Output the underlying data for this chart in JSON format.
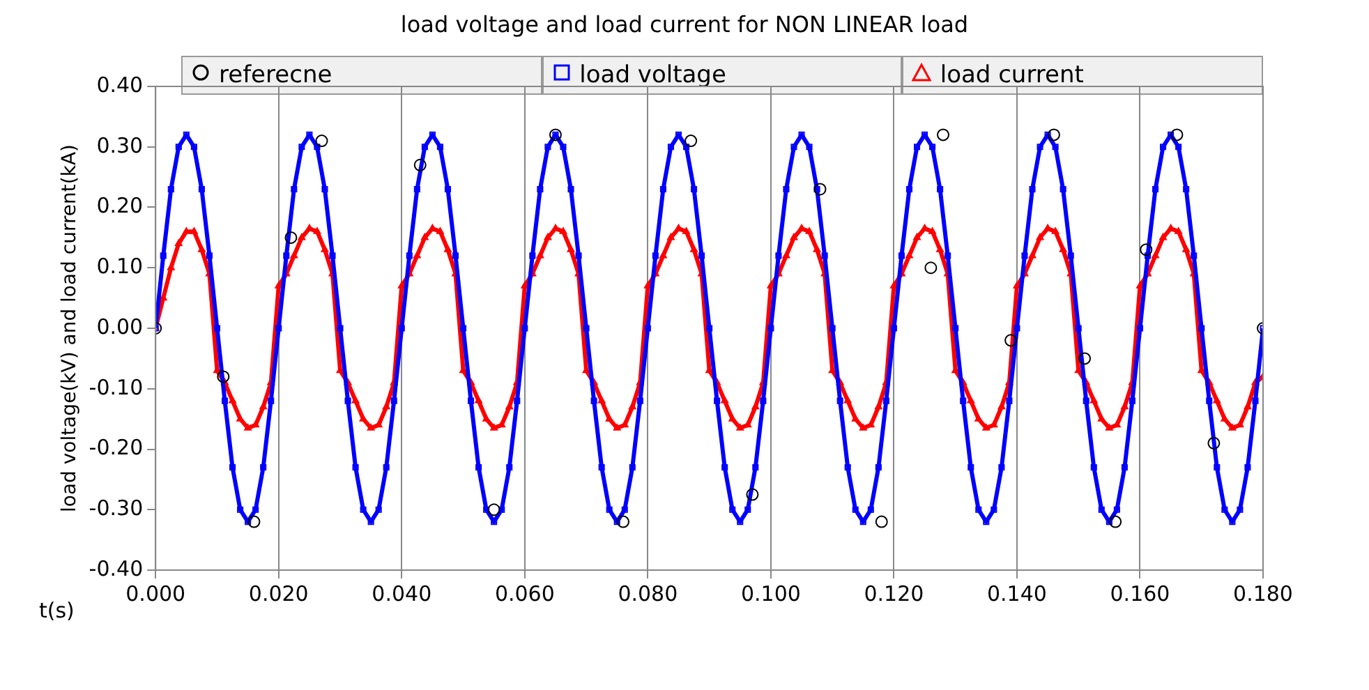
{
  "chart_data": {
    "type": "line",
    "title": "load voltage and load current for NON LINEAR load",
    "xlabel": "t(s)",
    "ylabel": "load voltage(kV) and load current(kA)",
    "x": [
      0,
      0.00125,
      0.0025,
      0.00375,
      0.005,
      0.00625,
      0.0075,
      0.00875,
      0.01,
      0.01125,
      0.0125,
      0.01375,
      0.015,
      0.01625,
      0.0175,
      0.01875,
      0.02,
      0.02125,
      0.0225,
      0.02375,
      0.025,
      0.02625,
      0.0275,
      0.02875,
      0.03,
      0.03125,
      0.0325,
      0.03375,
      0.035,
      0.03625,
      0.0375,
      0.03875,
      0.04,
      0.04125,
      0.0425,
      0.04375,
      0.045,
      0.04625,
      0.0475,
      0.04875,
      0.05,
      0.05125,
      0.0525,
      0.05375,
      0.055,
      0.05625,
      0.0575,
      0.05875,
      0.06,
      0.06125,
      0.0625,
      0.06375,
      0.065,
      0.06625,
      0.0675,
      0.06875,
      0.07,
      0.07125,
      0.0725,
      0.07375,
      0.075,
      0.07625,
      0.0775,
      0.07875,
      0.08,
      0.08125,
      0.0825,
      0.08375,
      0.085,
      0.08625,
      0.0875,
      0.08875,
      0.09,
      0.09125,
      0.0925,
      0.09375,
      0.095,
      0.09625,
      0.0975,
      0.09875,
      0.1,
      0.10125,
      0.1025,
      0.10375,
      0.105,
      0.10625,
      0.1075,
      0.10875,
      0.11,
      0.11125,
      0.1125,
      0.11375,
      0.115,
      0.11625,
      0.1175,
      0.11875,
      0.12,
      0.12125,
      0.1225,
      0.12375,
      0.125,
      0.12625,
      0.1275,
      0.12875,
      0.13,
      0.13125,
      0.1325,
      0.13375,
      0.135,
      0.13625,
      0.1375,
      0.13875,
      0.14,
      0.14125,
      0.1425,
      0.14375,
      0.145,
      0.14625,
      0.1475,
      0.14875,
      0.15,
      0.15125,
      0.1525,
      0.15375,
      0.155,
      0.15625,
      0.1575,
      0.15875,
      0.16,
      0.16125,
      0.1625,
      0.16375,
      0.165,
      0.16625,
      0.1675,
      0.16875,
      0.17,
      0.17125,
      0.1725,
      0.17375,
      0.175,
      0.17625,
      0.1775,
      0.17875,
      0.18
    ],
    "series": [
      {
        "name": "load voltage",
        "color": "#0000ff",
        "marker": "square",
        "values": [
          0,
          0.12,
          0.23,
          0.3,
          0.32,
          0.3,
          0.23,
          0.12,
          0,
          -0.12,
          -0.23,
          -0.3,
          -0.32,
          -0.3,
          -0.23,
          -0.12,
          0,
          0.12,
          0.23,
          0.3,
          0.32,
          0.3,
          0.23,
          0.12,
          0,
          -0.12,
          -0.23,
          -0.3,
          -0.32,
          -0.3,
          -0.23,
          -0.12,
          0,
          0.12,
          0.23,
          0.3,
          0.32,
          0.3,
          0.23,
          0.12,
          0,
          -0.12,
          -0.23,
          -0.3,
          -0.32,
          -0.3,
          -0.23,
          -0.12,
          0,
          0.12,
          0.23,
          0.3,
          0.32,
          0.3,
          0.23,
          0.12,
          0,
          -0.12,
          -0.23,
          -0.3,
          -0.32,
          -0.3,
          -0.23,
          -0.12,
          0,
          0.12,
          0.23,
          0.3,
          0.32,
          0.3,
          0.23,
          0.12,
          0,
          -0.12,
          -0.23,
          -0.3,
          -0.32,
          -0.3,
          -0.23,
          -0.12,
          0,
          0.12,
          0.23,
          0.3,
          0.32,
          0.3,
          0.23,
          0.12,
          0,
          -0.12,
          -0.23,
          -0.3,
          -0.32,
          -0.3,
          -0.23,
          -0.12,
          0,
          0.12,
          0.23,
          0.3,
          0.32,
          0.3,
          0.23,
          0.12,
          0,
          -0.12,
          -0.23,
          -0.3,
          -0.32,
          -0.3,
          -0.23,
          -0.12,
          0,
          0.12,
          0.23,
          0.3,
          0.32,
          0.3,
          0.23,
          0.12,
          0,
          -0.12,
          -0.23,
          -0.3,
          -0.32,
          -0.3,
          -0.23,
          -0.12,
          0,
          0.12,
          0.23,
          0.3,
          0.32,
          0.3,
          0.23,
          0.12,
          0,
          -0.12,
          -0.23,
          -0.3,
          -0.32,
          -0.3,
          -0.23,
          -0.12,
          0
        ]
      },
      {
        "name": "referecne",
        "type": "scatter",
        "color": "#000000",
        "marker": "circle",
        "x": [
          0,
          0.011,
          0.016,
          0.022,
          0.027,
          0.043,
          0.055,
          0.065,
          0.076,
          0.087,
          0.097,
          0.108,
          0.118,
          0.126,
          0.128,
          0.139,
          0.146,
          0.151,
          0.156,
          0.161,
          0.166,
          0.172,
          0.18
        ],
        "values": [
          0,
          -0.08,
          -0.32,
          0.15,
          0.31,
          0.27,
          -0.3,
          0.32,
          -0.32,
          0.31,
          -0.275,
          0.23,
          -0.32,
          0.1,
          0.32,
          -0.02,
          0.32,
          -0.05,
          -0.32,
          0.13,
          0.32,
          -0.19,
          0
        ]
      },
      {
        "name": "load current",
        "color": "#ff0000",
        "marker": "triangle",
        "values": [
          0,
          0.05,
          0.1,
          0.14,
          0.16,
          0.16,
          0.13,
          0.09,
          -0.07,
          -0.09,
          -0.12,
          -0.15,
          -0.165,
          -0.16,
          -0.13,
          -0.09,
          0.07,
          0.09,
          0.12,
          0.15,
          0.165,
          0.16,
          0.13,
          0.09,
          -0.07,
          -0.09,
          -0.12,
          -0.15,
          -0.165,
          -0.16,
          -0.13,
          -0.09,
          0.07,
          0.09,
          0.12,
          0.15,
          0.165,
          0.16,
          0.13,
          0.09,
          -0.07,
          -0.09,
          -0.12,
          -0.15,
          -0.165,
          -0.16,
          -0.13,
          -0.09,
          0.07,
          0.09,
          0.12,
          0.15,
          0.165,
          0.16,
          0.13,
          0.09,
          -0.07,
          -0.09,
          -0.12,
          -0.15,
          -0.165,
          -0.16,
          -0.13,
          -0.09,
          0.07,
          0.09,
          0.12,
          0.15,
          0.165,
          0.16,
          0.13,
          0.09,
          -0.07,
          -0.09,
          -0.12,
          -0.15,
          -0.165,
          -0.16,
          -0.13,
          -0.09,
          0.07,
          0.09,
          0.12,
          0.15,
          0.165,
          0.16,
          0.13,
          0.09,
          -0.07,
          -0.09,
          -0.12,
          -0.15,
          -0.165,
          -0.16,
          -0.13,
          -0.09,
          0.07,
          0.09,
          0.12,
          0.15,
          0.165,
          0.16,
          0.13,
          0.09,
          -0.07,
          -0.09,
          -0.12,
          -0.15,
          -0.165,
          -0.16,
          -0.13,
          -0.09,
          0.07,
          0.09,
          0.12,
          0.15,
          0.165,
          0.16,
          0.13,
          0.09,
          -0.07,
          -0.09,
          -0.12,
          -0.15,
          -0.165,
          -0.16,
          -0.13,
          -0.09,
          0.07,
          0.09,
          0.12,
          0.15,
          0.165,
          0.16,
          0.13,
          0.09,
          -0.07,
          -0.09,
          -0.12,
          -0.15,
          -0.165,
          -0.16,
          -0.13,
          -0.09,
          -0.08
        ]
      }
    ],
    "xlim": [
      0,
      0.18
    ],
    "xticks": [
      {
        "value": 0,
        "label": "0.000"
      },
      {
        "value": 0.02,
        "label": "0.020"
      },
      {
        "value": 0.04,
        "label": "0.040"
      },
      {
        "value": 0.06,
        "label": "0.060"
      },
      {
        "value": 0.08,
        "label": "0.080"
      },
      {
        "value": 0.1,
        "label": "0.100"
      },
      {
        "value": 0.12,
        "label": "0.120"
      },
      {
        "value": 0.14,
        "label": "0.140"
      },
      {
        "value": 0.16,
        "label": "0.160"
      },
      {
        "value": 0.18,
        "label": "0.180"
      }
    ],
    "ylim": [
      -0.4,
      0.4
    ],
    "yticks": [
      {
        "value": -0.4,
        "label": "-0.40"
      },
      {
        "value": -0.3,
        "label": "-0.30"
      },
      {
        "value": -0.2,
        "label": "-0.20"
      },
      {
        "value": -0.1,
        "label": "-0.10"
      },
      {
        "value": 0,
        "label": "0.00"
      },
      {
        "value": 0.1,
        "label": "0.10"
      },
      {
        "value": 0.2,
        "label": "0.20"
      },
      {
        "value": 0.3,
        "label": "0.30"
      },
      {
        "value": 0.4,
        "label": "0.40"
      }
    ],
    "grid": "x",
    "legend": "top",
    "line_style": "solid"
  }
}
